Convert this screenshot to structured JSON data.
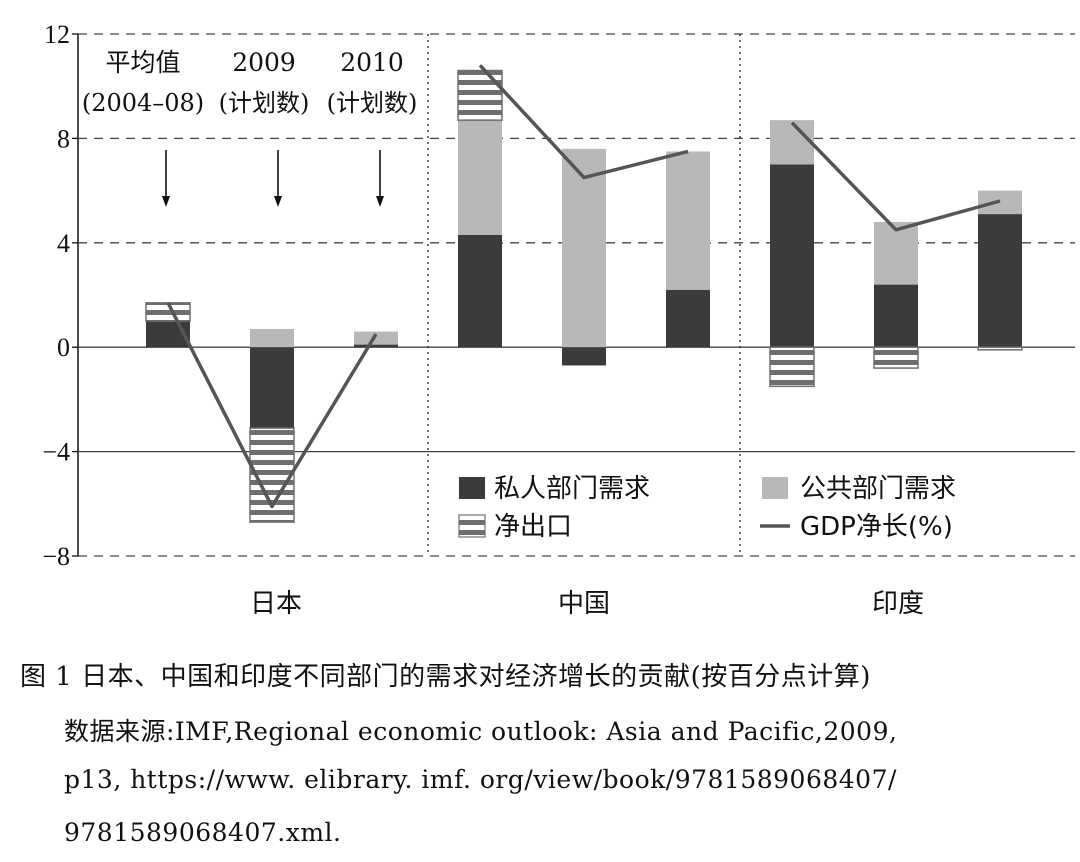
{
  "chart_data": {
    "type": "bar",
    "stacked": true,
    "ylim": [
      -8,
      12
    ],
    "yticks": [
      12,
      8,
      4,
      0,
      -4,
      -8
    ],
    "groups": [
      "日本",
      "中国",
      "印度"
    ],
    "period_labels": [
      {
        "line1": "平均值",
        "line2": "(2004–08)"
      },
      {
        "line1": "2009",
        "line2": "(计划数)"
      },
      {
        "line1": "2010",
        "line2": "(计划数)"
      }
    ],
    "bars": [
      {
        "group": "日本",
        "private": 1.0,
        "public": 0.0,
        "net_exports": 0.7,
        "gdp": 1.7
      },
      {
        "group": "日本",
        "private": -3.1,
        "public": 0.7,
        "net_exports": -3.6,
        "gdp": -6.1
      },
      {
        "group": "日本",
        "private": 0.1,
        "public": 0.5,
        "net_exports": 0.0,
        "gdp": 0.5
      },
      {
        "group": "中国",
        "private": 4.3,
        "public": 4.4,
        "net_exports": 1.9,
        "gdp": 10.8
      },
      {
        "group": "中国",
        "private": -0.7,
        "public": 7.6,
        "net_exports": 0.0,
        "gdp": 6.5
      },
      {
        "group": "中国",
        "private": 2.2,
        "public": 5.3,
        "net_exports": 0.0,
        "gdp": 7.5
      },
      {
        "group": "印度",
        "private": 7.0,
        "public": 1.7,
        "net_exports": -1.5,
        "gdp": 8.6
      },
      {
        "group": "印度",
        "private": 2.4,
        "public": 2.4,
        "net_exports": -0.8,
        "gdp": 4.5
      },
      {
        "group": "印度",
        "private": 5.1,
        "public": 0.9,
        "net_exports": -0.1,
        "gdp": 5.6
      }
    ],
    "legend": {
      "private": "私人部门需求",
      "public": "公共部门需求",
      "net_exports": "净出口",
      "gdp": "GDP净长(%)"
    },
    "colors": {
      "private": "#3b3b3b",
      "public": "#b8b8b8",
      "net_exports_dark": "#6e6e6e",
      "net_exports_light": "#ffffff",
      "gdp": "#555555",
      "grid": "#444444"
    }
  },
  "caption": {
    "title": "图 1  日本、中国和印度不同部门的需求对经济增长的贡献(按百分点计算)",
    "source_line1": "数据来源:IMF,Regional economic outlook: Asia and Pacific,2009,",
    "source_line2": "p13, https://www. elibrary. imf. org/view/book/9781589068407/",
    "source_line3": "9781589068407.xml."
  }
}
